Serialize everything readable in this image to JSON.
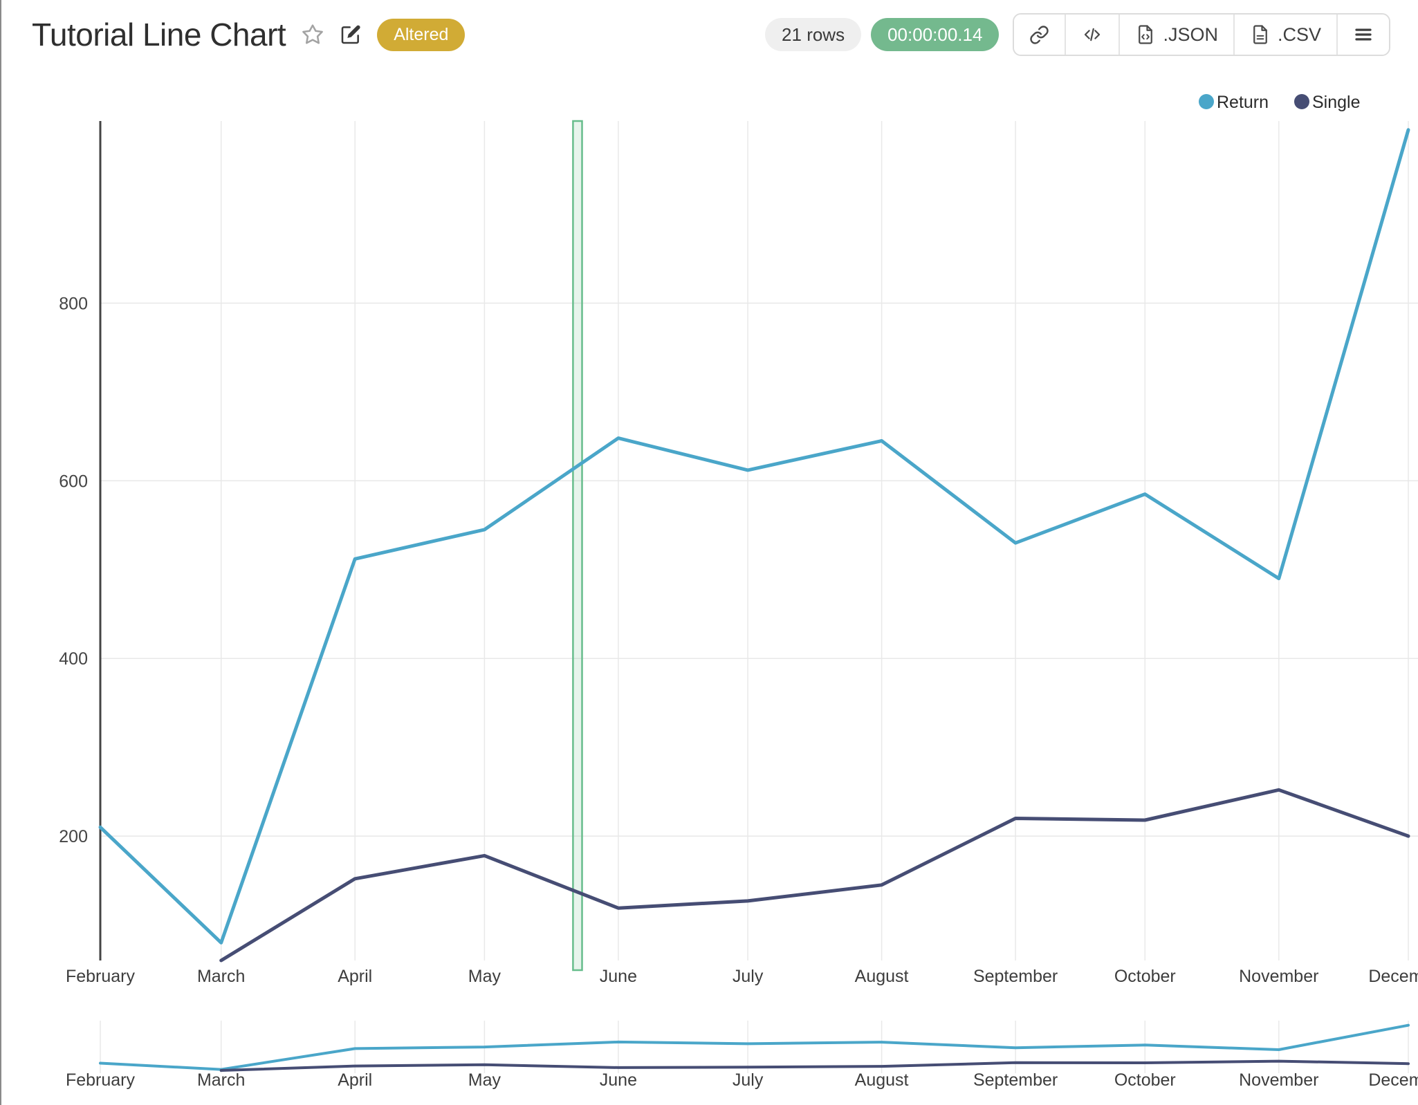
{
  "header": {
    "title": "Tutorial Line Chart",
    "status_badge": "Altered",
    "rows_count": "21 rows",
    "execution_time": "00:00:00.14",
    "toolbar": {
      "json_label": ".JSON",
      "csv_label": ".CSV"
    }
  },
  "colors": {
    "badge_gold": "#d1ab35",
    "rows_pill_bg": "#efefef",
    "rows_pill_text": "#3a3a3a",
    "time_pill_green": "#74b98e",
    "axis_line": "#444444",
    "grid_line": "#e9e9e9",
    "tick_text": "#444444",
    "month_text": "#3d3d3d",
    "legend_text": "#2b2b2b"
  },
  "chart_data": {
    "type": "line",
    "title": "",
    "xlabel": "",
    "ylabel": "",
    "categories": [
      "February",
      "March",
      "April",
      "May",
      "June",
      "July",
      "August",
      "September",
      "October",
      "November",
      "December"
    ],
    "series": [
      {
        "name": "Return",
        "color": "#4aa6c9",
        "values": [
          210,
          80,
          512,
          545,
          648,
          612,
          645,
          530,
          585,
          490,
          995
        ]
      },
      {
        "name": "Single",
        "color": "#464d74",
        "values": [
          null,
          60,
          152,
          178,
          119,
          127,
          145,
          220,
          218,
          252,
          200
        ]
      }
    ],
    "yticks": [
      200,
      400,
      600,
      800
    ],
    "ylim": [
      60,
      1005
    ],
    "x_axis_type": "date",
    "grid": true,
    "legend_position": "top-right",
    "highlight_band": {
      "from_day_of_range": 109.5,
      "to_day_of_range": 111.6,
      "fill": "rgba(104,189,139,0.16)",
      "border": "#67bd8c"
    },
    "rangeslider": true
  }
}
